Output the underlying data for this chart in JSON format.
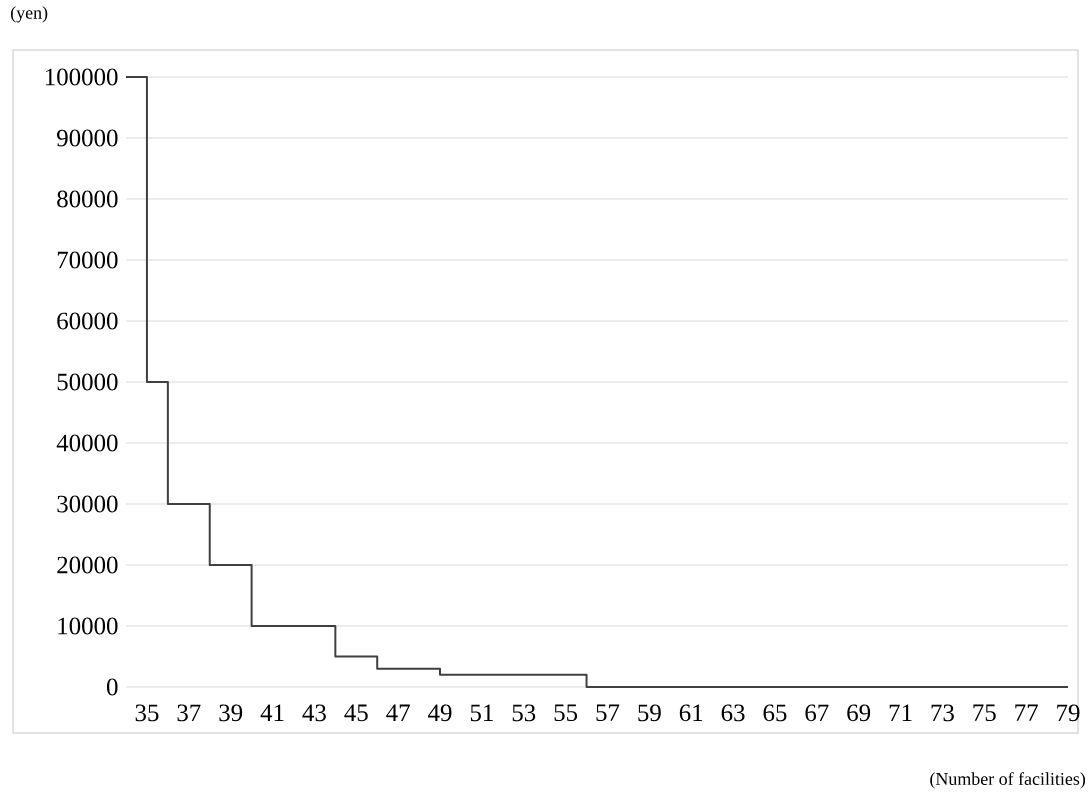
{
  "chart_data": {
    "type": "step",
    "xlabel": "(Number of facilities)",
    "ylabel": "(yen)",
    "x": [
      34,
      35,
      36,
      38,
      40,
      44,
      46,
      49,
      56,
      79
    ],
    "values": [
      100000,
      50000,
      30000,
      20000,
      10000,
      5000,
      3000,
      2000,
      0,
      0
    ],
    "color": "#404040",
    "xlim": [
      34,
      79
    ],
    "xticks": [
      35,
      37,
      39,
      41,
      43,
      45,
      47,
      49,
      51,
      53,
      55,
      57,
      59,
      61,
      63,
      65,
      67,
      69,
      71,
      73,
      75,
      77,
      79
    ],
    "ylim": [
      0,
      100000
    ],
    "yticks": [
      0,
      10000,
      20000,
      30000,
      40000,
      50000,
      60000,
      70000,
      80000,
      90000,
      100000
    ],
    "grid": "y",
    "marker": "none",
    "line_style": "solid"
  }
}
